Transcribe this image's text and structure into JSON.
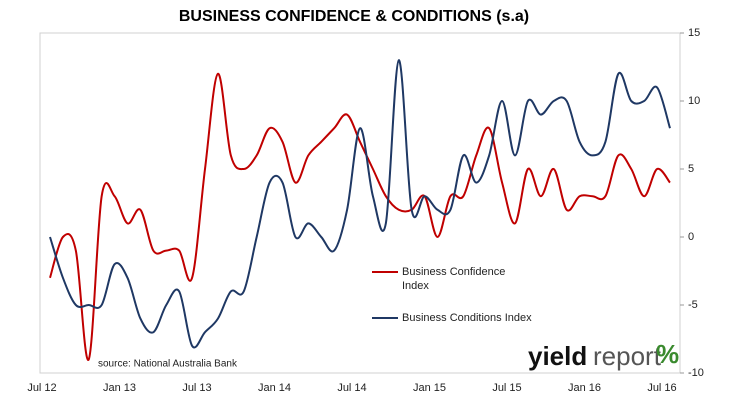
{
  "chart_data": {
    "type": "line",
    "title": "BUSINESS CONFIDENCE & CONDITIONS (s.a)",
    "categories": [
      "Jul 12",
      null,
      null,
      null,
      null,
      null,
      "Jan 13",
      null,
      null,
      null,
      null,
      null,
      "Jul 13",
      null,
      null,
      null,
      null,
      null,
      "Jan 14",
      null,
      null,
      null,
      null,
      null,
      "Jul 14",
      null,
      null,
      null,
      null,
      null,
      "Jan 15",
      null,
      null,
      null,
      null,
      null,
      "Jul 15",
      null,
      null,
      null,
      null,
      null,
      "Jan 16",
      null,
      null,
      null,
      null,
      null,
      "Jul 16"
    ],
    "series": [
      {
        "name": "Business Confidence Index",
        "color": "#c00000",
        "values": [
          -3,
          0,
          -1,
          -9,
          3,
          3,
          1,
          2,
          -1,
          -1,
          -1,
          -3,
          5,
          12,
          6,
          5,
          6,
          8,
          7,
          4,
          6,
          7,
          8,
          9,
          7,
          5,
          3,
          2,
          2,
          3,
          0,
          3,
          3,
          6,
          8,
          4,
          1,
          5,
          3,
          5,
          2,
          3,
          3,
          3,
          6,
          5,
          3,
          5,
          4
        ]
      },
      {
        "name": "Business Conditions Index",
        "color": "#1f3864",
        "values": [
          0,
          -3,
          -5,
          -5,
          -5,
          -2,
          -3,
          -6,
          -7,
          -5,
          -4,
          -8,
          -7,
          -6,
          -4,
          -4,
          0,
          4,
          4,
          0,
          1,
          0,
          -1,
          2,
          8,
          3,
          1,
          13,
          2,
          3,
          2,
          2,
          6,
          4,
          6,
          10,
          6,
          10,
          9,
          10,
          10,
          7,
          6,
          7,
          12,
          10,
          10,
          11,
          8
        ]
      }
    ],
    "ylim": [
      -10,
      15
    ],
    "yticks": [
      -10,
      -5,
      0,
      5,
      10,
      15
    ],
    "legend": "center",
    "annotations": [
      "source: National Australia Bank",
      "yield",
      "report",
      "%"
    ]
  }
}
